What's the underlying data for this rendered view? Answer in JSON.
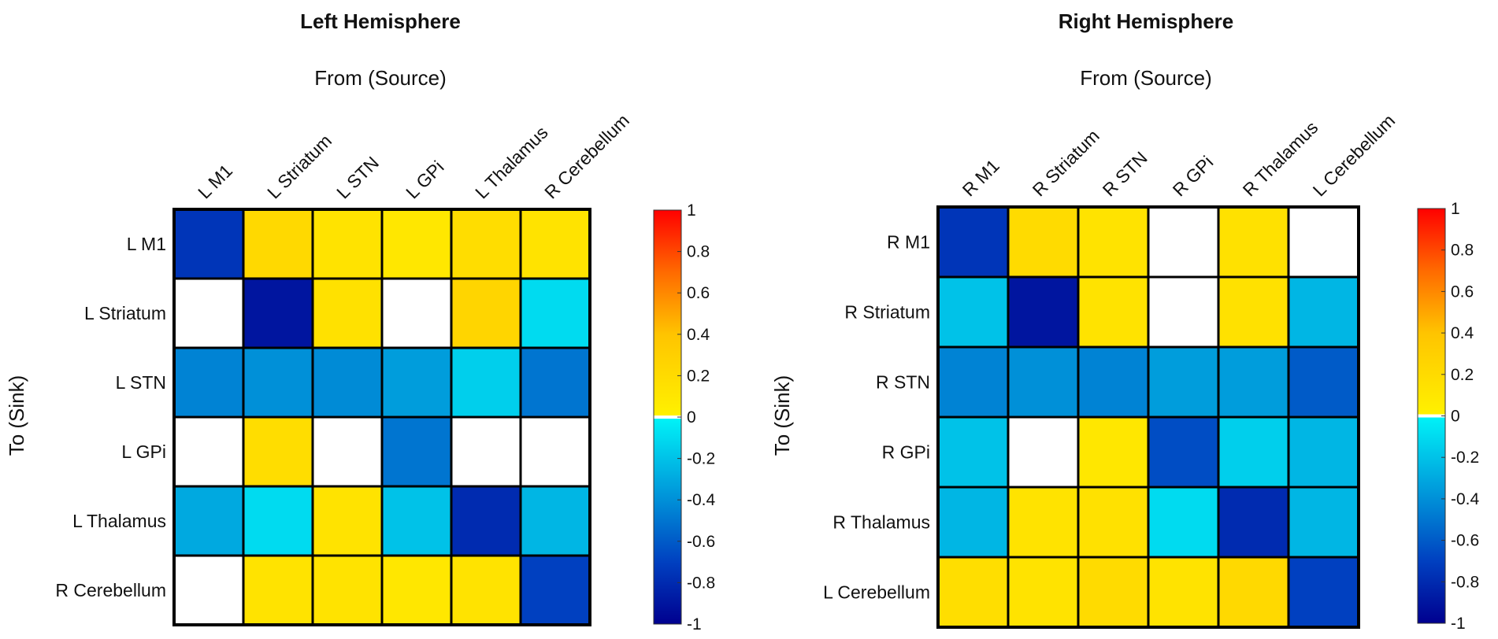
{
  "chart_data": [
    {
      "type": "heatmap",
      "title": "Left Hemisphere",
      "xlabel": "From (Source)",
      "ylabel": "To (Sink)",
      "columns": [
        "L M1",
        "L Striatum",
        "L STN",
        "L GPi",
        "L Thalamus",
        "R Cerebellum"
      ],
      "rows": [
        "L M1",
        "L Striatum",
        "L STN",
        "L GPi",
        "L Thalamus",
        "R Cerebellum"
      ],
      "values": [
        [
          -0.75,
          0.22,
          0.13,
          0.1,
          0.18,
          0.13
        ],
        [
          null,
          -0.9,
          0.15,
          null,
          0.25,
          -0.1
        ],
        [
          -0.45,
          -0.4,
          -0.42,
          -0.35,
          -0.15,
          -0.5
        ],
        [
          null,
          0.18,
          null,
          -0.5,
          null,
          null
        ],
        [
          -0.3,
          -0.1,
          0.13,
          -0.2,
          -0.8,
          -0.25
        ],
        [
          null,
          0.13,
          0.13,
          0.1,
          0.13,
          -0.7
        ]
      ],
      "colorbar": {
        "min": -1,
        "max": 1,
        "ticks": [
          "1",
          "0.8",
          "0.6",
          "0.4",
          "0.2",
          "0",
          "-0.2",
          "-0.4",
          "-0.6",
          "-0.8",
          "-1"
        ]
      }
    },
    {
      "type": "heatmap",
      "title": "Right Hemisphere",
      "xlabel": "From (Source)",
      "ylabel": "To (Sink)",
      "columns": [
        "R M1",
        "R Striatum",
        "R STN",
        "R GPi",
        "R Thalamus",
        "L Cerebellum"
      ],
      "rows": [
        "R M1",
        "R Striatum",
        "R STN",
        "R GPi",
        "R Thalamus",
        "L Cerebellum"
      ],
      "values": [
        [
          -0.75,
          0.2,
          0.13,
          null,
          0.15,
          null
        ],
        [
          -0.2,
          -0.9,
          0.13,
          null,
          0.15,
          -0.25
        ],
        [
          -0.45,
          -0.4,
          -0.45,
          -0.35,
          -0.35,
          -0.6
        ],
        [
          -0.2,
          null,
          0.1,
          -0.65,
          -0.15,
          -0.25
        ],
        [
          -0.25,
          0.13,
          0.15,
          -0.1,
          -0.8,
          -0.25
        ],
        [
          0.17,
          0.13,
          0.2,
          0.13,
          0.22,
          -0.7
        ]
      ],
      "colorbar": {
        "min": -1,
        "max": 1,
        "ticks": [
          "1",
          "0.8",
          "0.6",
          "0.4",
          "0.2",
          "0",
          "-0.2",
          "-0.4",
          "-0.6",
          "-0.8",
          "-1"
        ]
      }
    }
  ]
}
